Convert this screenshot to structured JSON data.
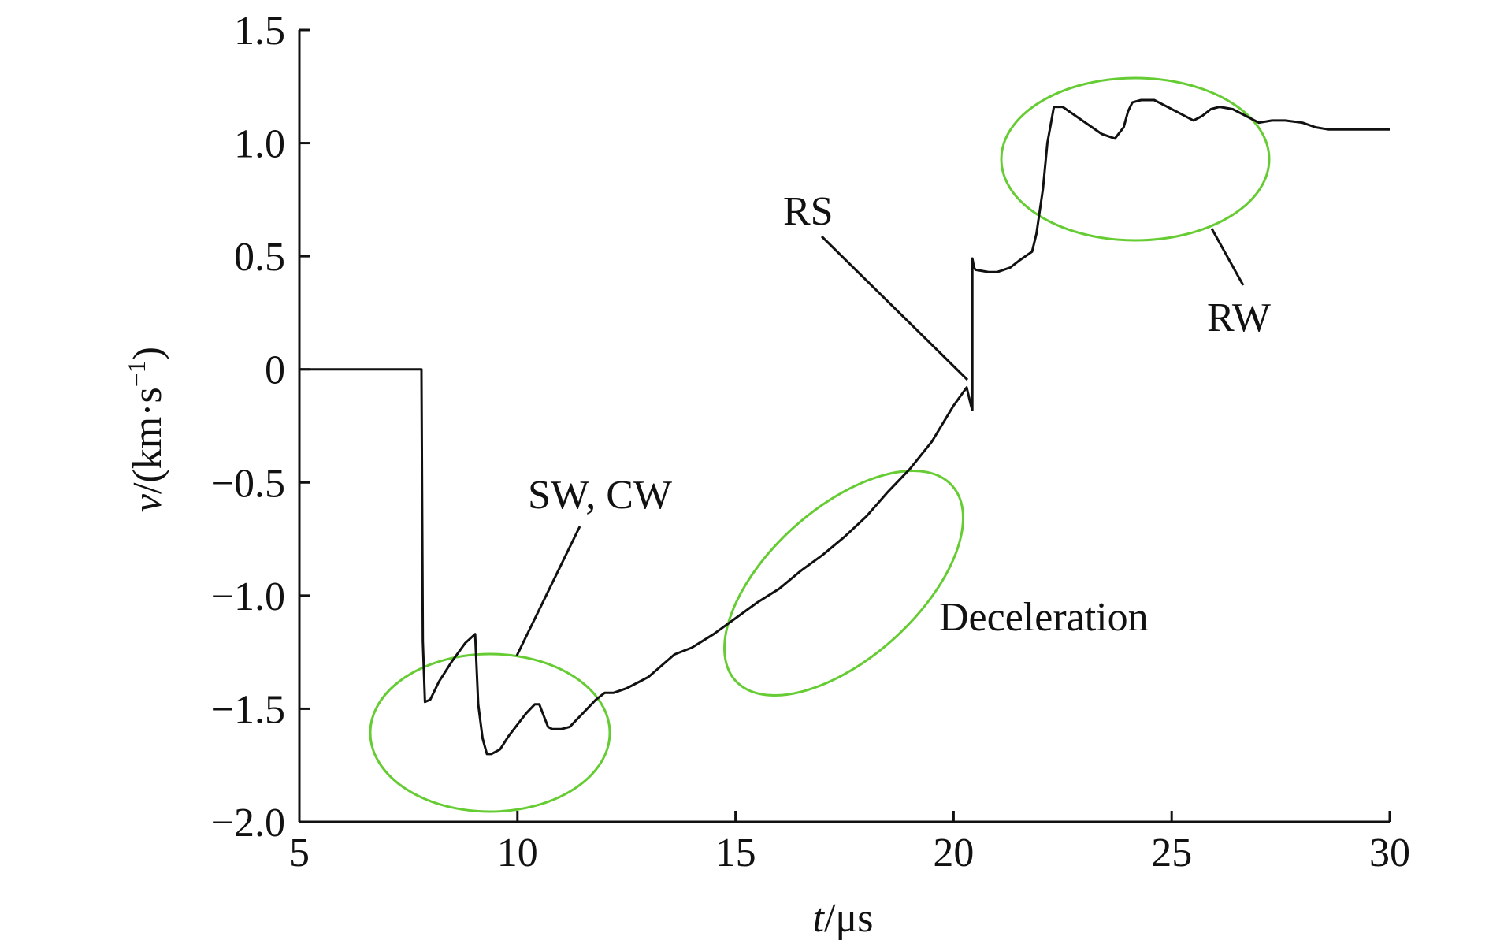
{
  "chart_data": {
    "type": "line",
    "xlabel_var": "t",
    "xlabel_unit": "/μs",
    "ylabel_var": "v",
    "ylabel_unit": "/(km·s",
    "ylabel_sup": "−1",
    "ylabel_close": ")",
    "xlim": [
      5,
      30
    ],
    "ylim": [
      -2.0,
      1.5
    ],
    "xticks": [
      5,
      10,
      15,
      20,
      25,
      30
    ],
    "xtick_labels": [
      "5",
      "10",
      "15",
      "20",
      "25",
      "30"
    ],
    "yticks": [
      1.5,
      1.0,
      0.5,
      0,
      -0.5,
      -1.0,
      -1.5,
      -2.0
    ],
    "ytick_labels": [
      "1.5",
      "1.0",
      "0.5",
      "0",
      "−0.5",
      "−1.0",
      "−1.5",
      "−2.0"
    ],
    "grid": false,
    "series": [
      {
        "color": "#111111",
        "x": [
          5,
          7.8,
          7.8,
          7.83,
          7.88,
          8.0,
          8.2,
          8.5,
          8.8,
          9.03,
          9.1,
          9.2,
          9.3,
          9.4,
          9.6,
          9.8,
          10.0,
          10.2,
          10.4,
          10.5,
          10.6,
          10.7,
          10.8,
          11.0,
          11.2,
          11.5,
          11.8,
          12.0,
          12.2,
          12.5,
          12.8,
          13.0,
          13.3,
          13.6,
          14.0,
          14.5,
          15.0,
          15.5,
          16.0,
          16.5,
          17.0,
          17.5,
          18.0,
          18.5,
          19.0,
          19.5,
          20.0,
          20.3,
          20.4,
          20.43,
          20.43,
          20.47,
          20.5,
          20.8,
          21.0,
          21.3,
          21.5,
          21.8,
          21.9,
          22.05,
          22.15,
          22.3,
          22.5,
          22.8,
          23.1,
          23.4,
          23.7,
          23.9,
          24.0,
          24.1,
          24.3,
          24.6,
          24.9,
          25.2,
          25.5,
          25.7,
          25.9,
          26.1,
          26.4,
          26.7,
          27.0,
          27.3,
          27.6,
          28.0,
          28.3,
          28.6,
          29.0,
          29.3,
          29.6,
          30.0
        ],
        "y": [
          0,
          0,
          -0.02,
          -1.2,
          -1.47,
          -1.46,
          -1.38,
          -1.29,
          -1.21,
          -1.17,
          -1.48,
          -1.63,
          -1.7,
          -1.7,
          -1.68,
          -1.62,
          -1.57,
          -1.52,
          -1.48,
          -1.48,
          -1.53,
          -1.58,
          -1.59,
          -1.59,
          -1.58,
          -1.52,
          -1.46,
          -1.43,
          -1.43,
          -1.41,
          -1.38,
          -1.36,
          -1.31,
          -1.26,
          -1.23,
          -1.17,
          -1.1,
          -1.03,
          -0.97,
          -0.89,
          -0.82,
          -0.74,
          -0.65,
          -0.54,
          -0.44,
          -0.32,
          -0.16,
          -0.08,
          -0.16,
          -0.18,
          0.49,
          0.45,
          0.44,
          0.43,
          0.43,
          0.45,
          0.48,
          0.52,
          0.6,
          0.8,
          1.0,
          1.16,
          1.16,
          1.12,
          1.08,
          1.04,
          1.02,
          1.07,
          1.14,
          1.18,
          1.19,
          1.19,
          1.16,
          1.13,
          1.1,
          1.12,
          1.15,
          1.16,
          1.15,
          1.12,
          1.09,
          1.1,
          1.1,
          1.09,
          1.07,
          1.06,
          1.06,
          1.06,
          1.06,
          1.06
        ]
      }
    ],
    "annotations": [
      {
        "text": "SW, CW",
        "ellipse_color": "#66cc33"
      },
      {
        "text": "Deceleration",
        "ellipse_color": "#66cc33"
      },
      {
        "text": "RS"
      },
      {
        "text": "RW",
        "ellipse_color": "#66cc33"
      }
    ]
  }
}
